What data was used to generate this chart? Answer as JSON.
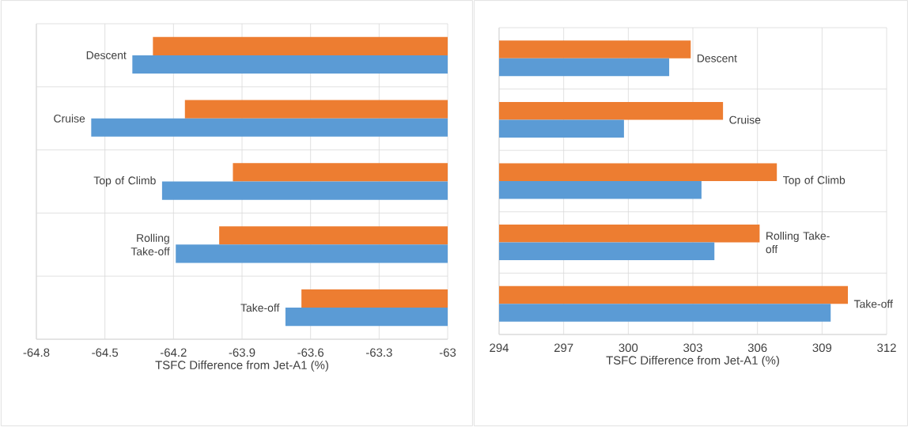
{
  "chart_data": [
    {
      "type": "bar",
      "orientation": "horizontal",
      "categories": [
        "Descent",
        "Cruise",
        "Top of Climb",
        "Rolling Take-off",
        "Take-off"
      ],
      "series": [
        {
          "color": "#ed7d31",
          "values": [
            -64.29,
            -64.15,
            -63.94,
            -64.0,
            -63.64
          ]
        },
        {
          "color": "#5b9bd5",
          "values": [
            -64.38,
            -64.56,
            -64.25,
            -64.19,
            -63.71
          ]
        }
      ],
      "xlim": [
        -64.8,
        -63
      ],
      "xticks": [
        -64.8,
        -64.5,
        -64.2,
        -63.9,
        -63.6,
        -63.3,
        -63
      ],
      "xlabel": "TSFC Difference from Jet-A1 (%)",
      "grid": true
    },
    {
      "type": "bar",
      "orientation": "horizontal",
      "categories": [
        "Descent",
        "Cruise",
        "Top of Climb",
        "Rolling Take-off",
        "Take-off"
      ],
      "series": [
        {
          "color": "#ed7d31",
          "values": [
            302.9,
            304.4,
            306.9,
            306.1,
            310.2
          ]
        },
        {
          "color": "#5b9bd5",
          "values": [
            301.9,
            299.8,
            303.4,
            304.0,
            309.4
          ]
        }
      ],
      "xlim": [
        294,
        312
      ],
      "xticks": [
        294,
        297,
        300,
        303,
        306,
        309,
        312
      ],
      "xlabel": "TSFC Difference from Jet-A1 (%)",
      "grid": true
    }
  ]
}
